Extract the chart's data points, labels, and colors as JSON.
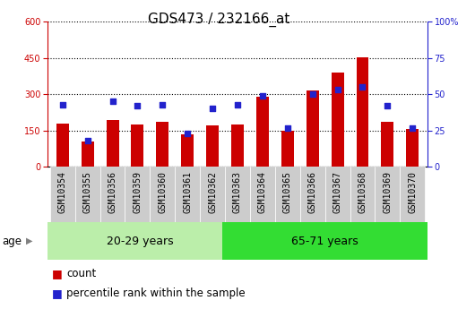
{
  "title": "GDS473 / 232166_at",
  "categories": [
    "GSM10354",
    "GSM10355",
    "GSM10356",
    "GSM10359",
    "GSM10360",
    "GSM10361",
    "GSM10362",
    "GSM10363",
    "GSM10364",
    "GSM10365",
    "GSM10366",
    "GSM10367",
    "GSM10368",
    "GSM10369",
    "GSM10370"
  ],
  "counts": [
    178,
    105,
    195,
    175,
    185,
    133,
    173,
    175,
    290,
    150,
    315,
    390,
    453,
    185,
    158
  ],
  "percentiles": [
    43,
    18,
    45,
    42,
    43,
    23,
    40,
    43,
    49,
    27,
    50,
    53,
    55,
    42,
    27
  ],
  "group1_label": "20-29 years",
  "group2_label": "65-71 years",
  "group1_count": 7,
  "group2_count": 8,
  "age_label": "age",
  "ylim_left": [
    0,
    600
  ],
  "ylim_right": [
    0,
    100
  ],
  "yticks_left": [
    0,
    150,
    300,
    450,
    600
  ],
  "yticks_right": [
    0,
    25,
    50,
    75,
    100
  ],
  "bar_color": "#cc0000",
  "dot_color": "#2222cc",
  "group1_bg": "#bbeeaa",
  "group2_bg": "#33dd33",
  "plot_bg": "#ffffff",
  "xtick_bg": "#cccccc",
  "legend_count_label": "count",
  "legend_pct_label": "percentile rank within the sample",
  "title_fontsize": 11,
  "tick_fontsize": 7,
  "label_fontsize": 8.5,
  "band_fontsize": 9
}
